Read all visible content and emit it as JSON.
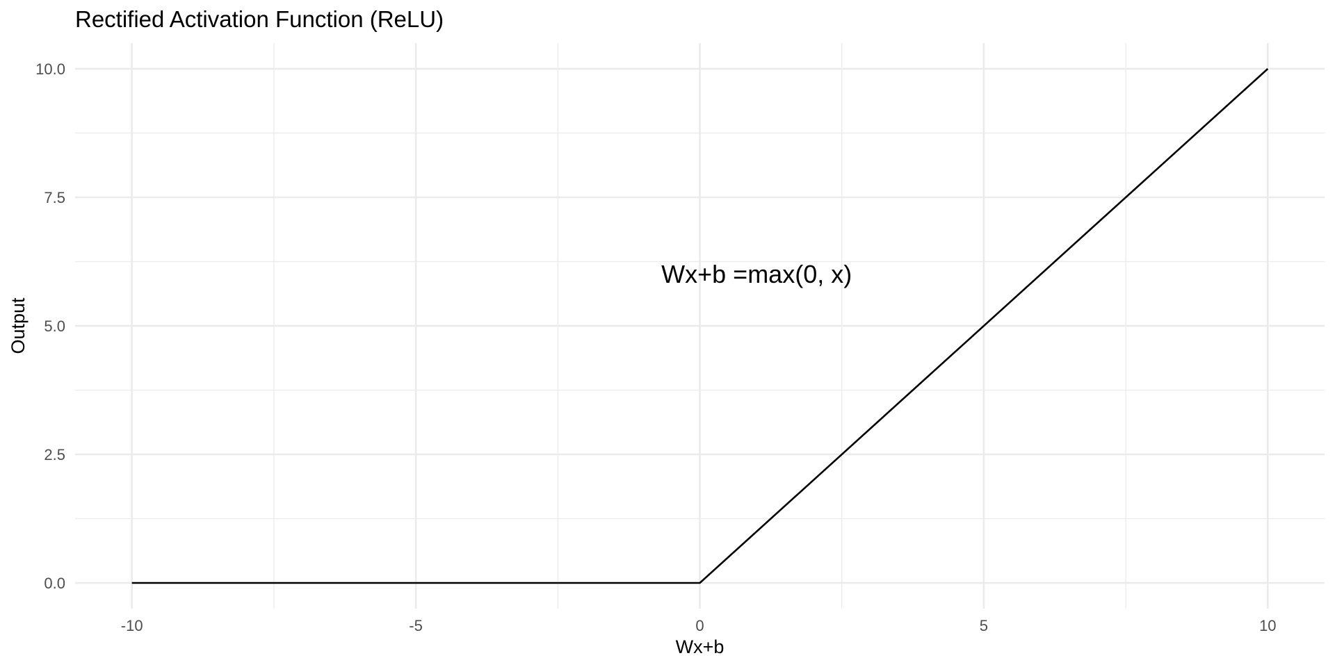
{
  "chart_data": {
    "type": "line",
    "title": "Rectified Activation Function (ReLU)",
    "xlabel": "Wx+b",
    "ylabel": "Output",
    "xlim": [
      -11,
      11
    ],
    "ylim": [
      -0.5,
      10.5
    ],
    "x_ticks": [
      -10,
      -5,
      0,
      5,
      10
    ],
    "x_tick_labels": [
      "-10",
      "-5",
      "0",
      "5",
      "10"
    ],
    "y_ticks": [
      0,
      2.5,
      5,
      7.5,
      10
    ],
    "y_tick_labels": [
      "0.0",
      "2.5",
      "5.0",
      "7.5",
      "10.0"
    ],
    "x_minor_ticks": [
      -7.5,
      -2.5,
      2.5,
      7.5
    ],
    "y_minor_ticks": [
      1.25,
      3.75,
      6.25,
      8.75
    ],
    "grid": true,
    "line_color": "#000000",
    "series": [
      {
        "x": [
          -10,
          0,
          10
        ],
        "y": [
          0,
          0,
          10
        ]
      }
    ],
    "annotations": [
      {
        "text": "Wx+b =max(0, x)",
        "x": 1,
        "y": 6
      }
    ]
  }
}
